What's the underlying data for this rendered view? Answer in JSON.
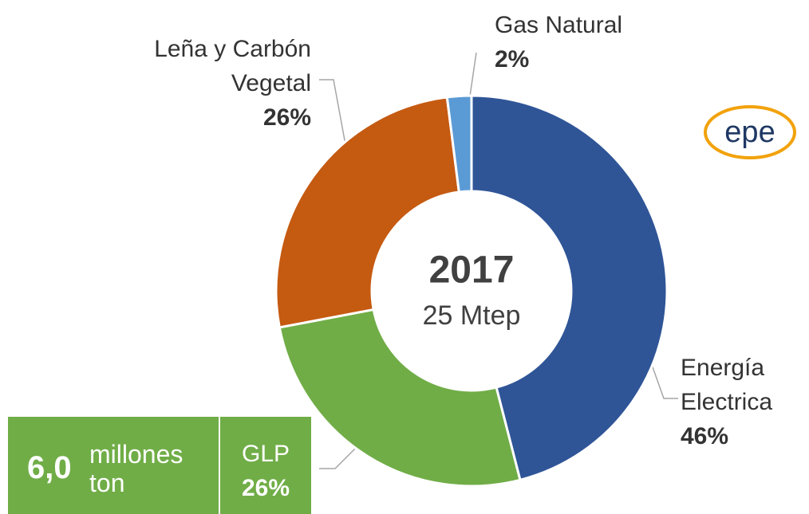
{
  "chart_data": {
    "type": "donut",
    "categories": [
      "Energía Electrica",
      "GLP",
      "Leña y Carbón Vegetal",
      "Gas Natural"
    ],
    "values": [
      46,
      26,
      26,
      2
    ],
    "value_labels": [
      "46%",
      "26%",
      "26%",
      "2%"
    ],
    "colors": [
      "#2f5597",
      "#70ad47",
      "#c55a11",
      "#5b9bd5"
    ],
    "center_title": "2017",
    "center_subtitle": "25 Mtep"
  },
  "note_box": {
    "value": "6,0",
    "unit_line1": "millones",
    "unit_line2": "ton"
  },
  "logo": "epe"
}
